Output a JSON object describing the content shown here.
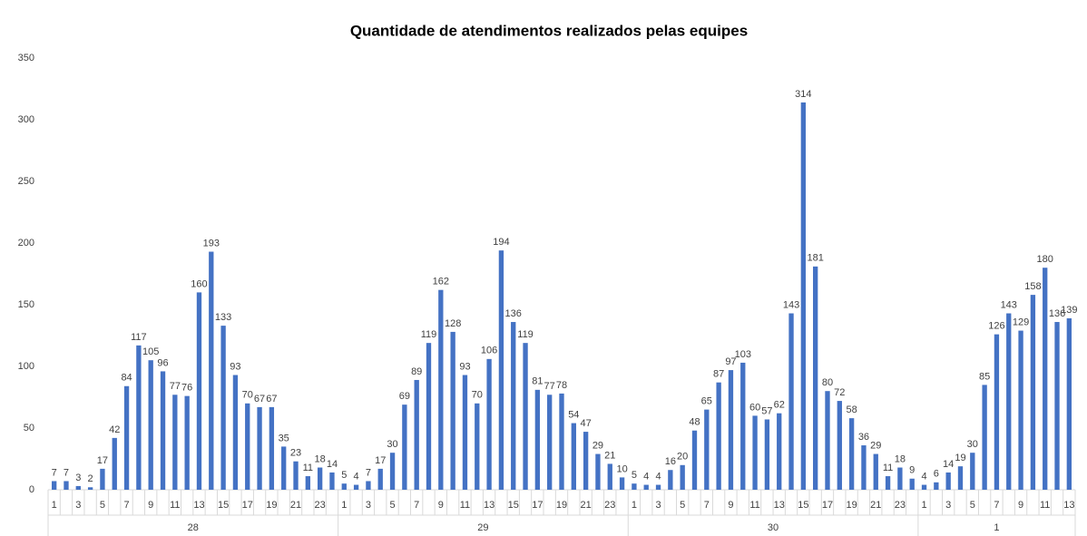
{
  "chart_data": {
    "type": "bar",
    "title": "Quantidade de atendimentos realizados pelas equipes",
    "color": "#4472c4",
    "ylim": [
      0,
      350
    ],
    "yticks": [
      0,
      50,
      100,
      150,
      200,
      250,
      300,
      350
    ],
    "groups": [
      {
        "label": "28",
        "categories": [
          1,
          null,
          3,
          null,
          5,
          null,
          7,
          null,
          9,
          null,
          11,
          null,
          13,
          null,
          15,
          null,
          17,
          null,
          19,
          null,
          21,
          null,
          23,
          null
        ],
        "values": [
          7,
          7,
          3,
          2,
          17,
          42,
          84,
          117,
          105,
          96,
          77,
          76,
          160,
          193,
          133,
          93,
          70,
          67,
          67,
          35,
          23,
          11,
          18,
          14
        ]
      },
      {
        "label": "29",
        "categories": [
          1,
          null,
          3,
          null,
          5,
          null,
          7,
          null,
          9,
          null,
          11,
          null,
          13,
          null,
          15,
          null,
          17,
          null,
          19,
          null,
          21,
          null,
          23,
          null
        ],
        "values": [
          5,
          4,
          7,
          17,
          30,
          69,
          89,
          119,
          162,
          128,
          93,
          70,
          106,
          194,
          136,
          119,
          81,
          77,
          78,
          54,
          47,
          29,
          21,
          10
        ]
      },
      {
        "label": "30",
        "categories": [
          1,
          null,
          3,
          null,
          5,
          null,
          7,
          null,
          9,
          null,
          11,
          null,
          13,
          null,
          15,
          null,
          17,
          null,
          19,
          null,
          21,
          null,
          23,
          null
        ],
        "values": [
          5,
          4,
          4,
          16,
          20,
          48,
          65,
          87,
          97,
          103,
          60,
          57,
          62,
          143,
          314,
          181,
          80,
          72,
          58,
          36,
          29,
          11,
          18,
          9
        ]
      },
      {
        "label": "1",
        "categories": [
          1,
          null,
          3,
          null,
          5,
          null,
          7,
          null,
          9,
          null,
          11,
          null,
          13
        ],
        "values": [
          4,
          6,
          14,
          19,
          30,
          85,
          126,
          143,
          129,
          158,
          180,
          136,
          139
        ]
      }
    ]
  }
}
